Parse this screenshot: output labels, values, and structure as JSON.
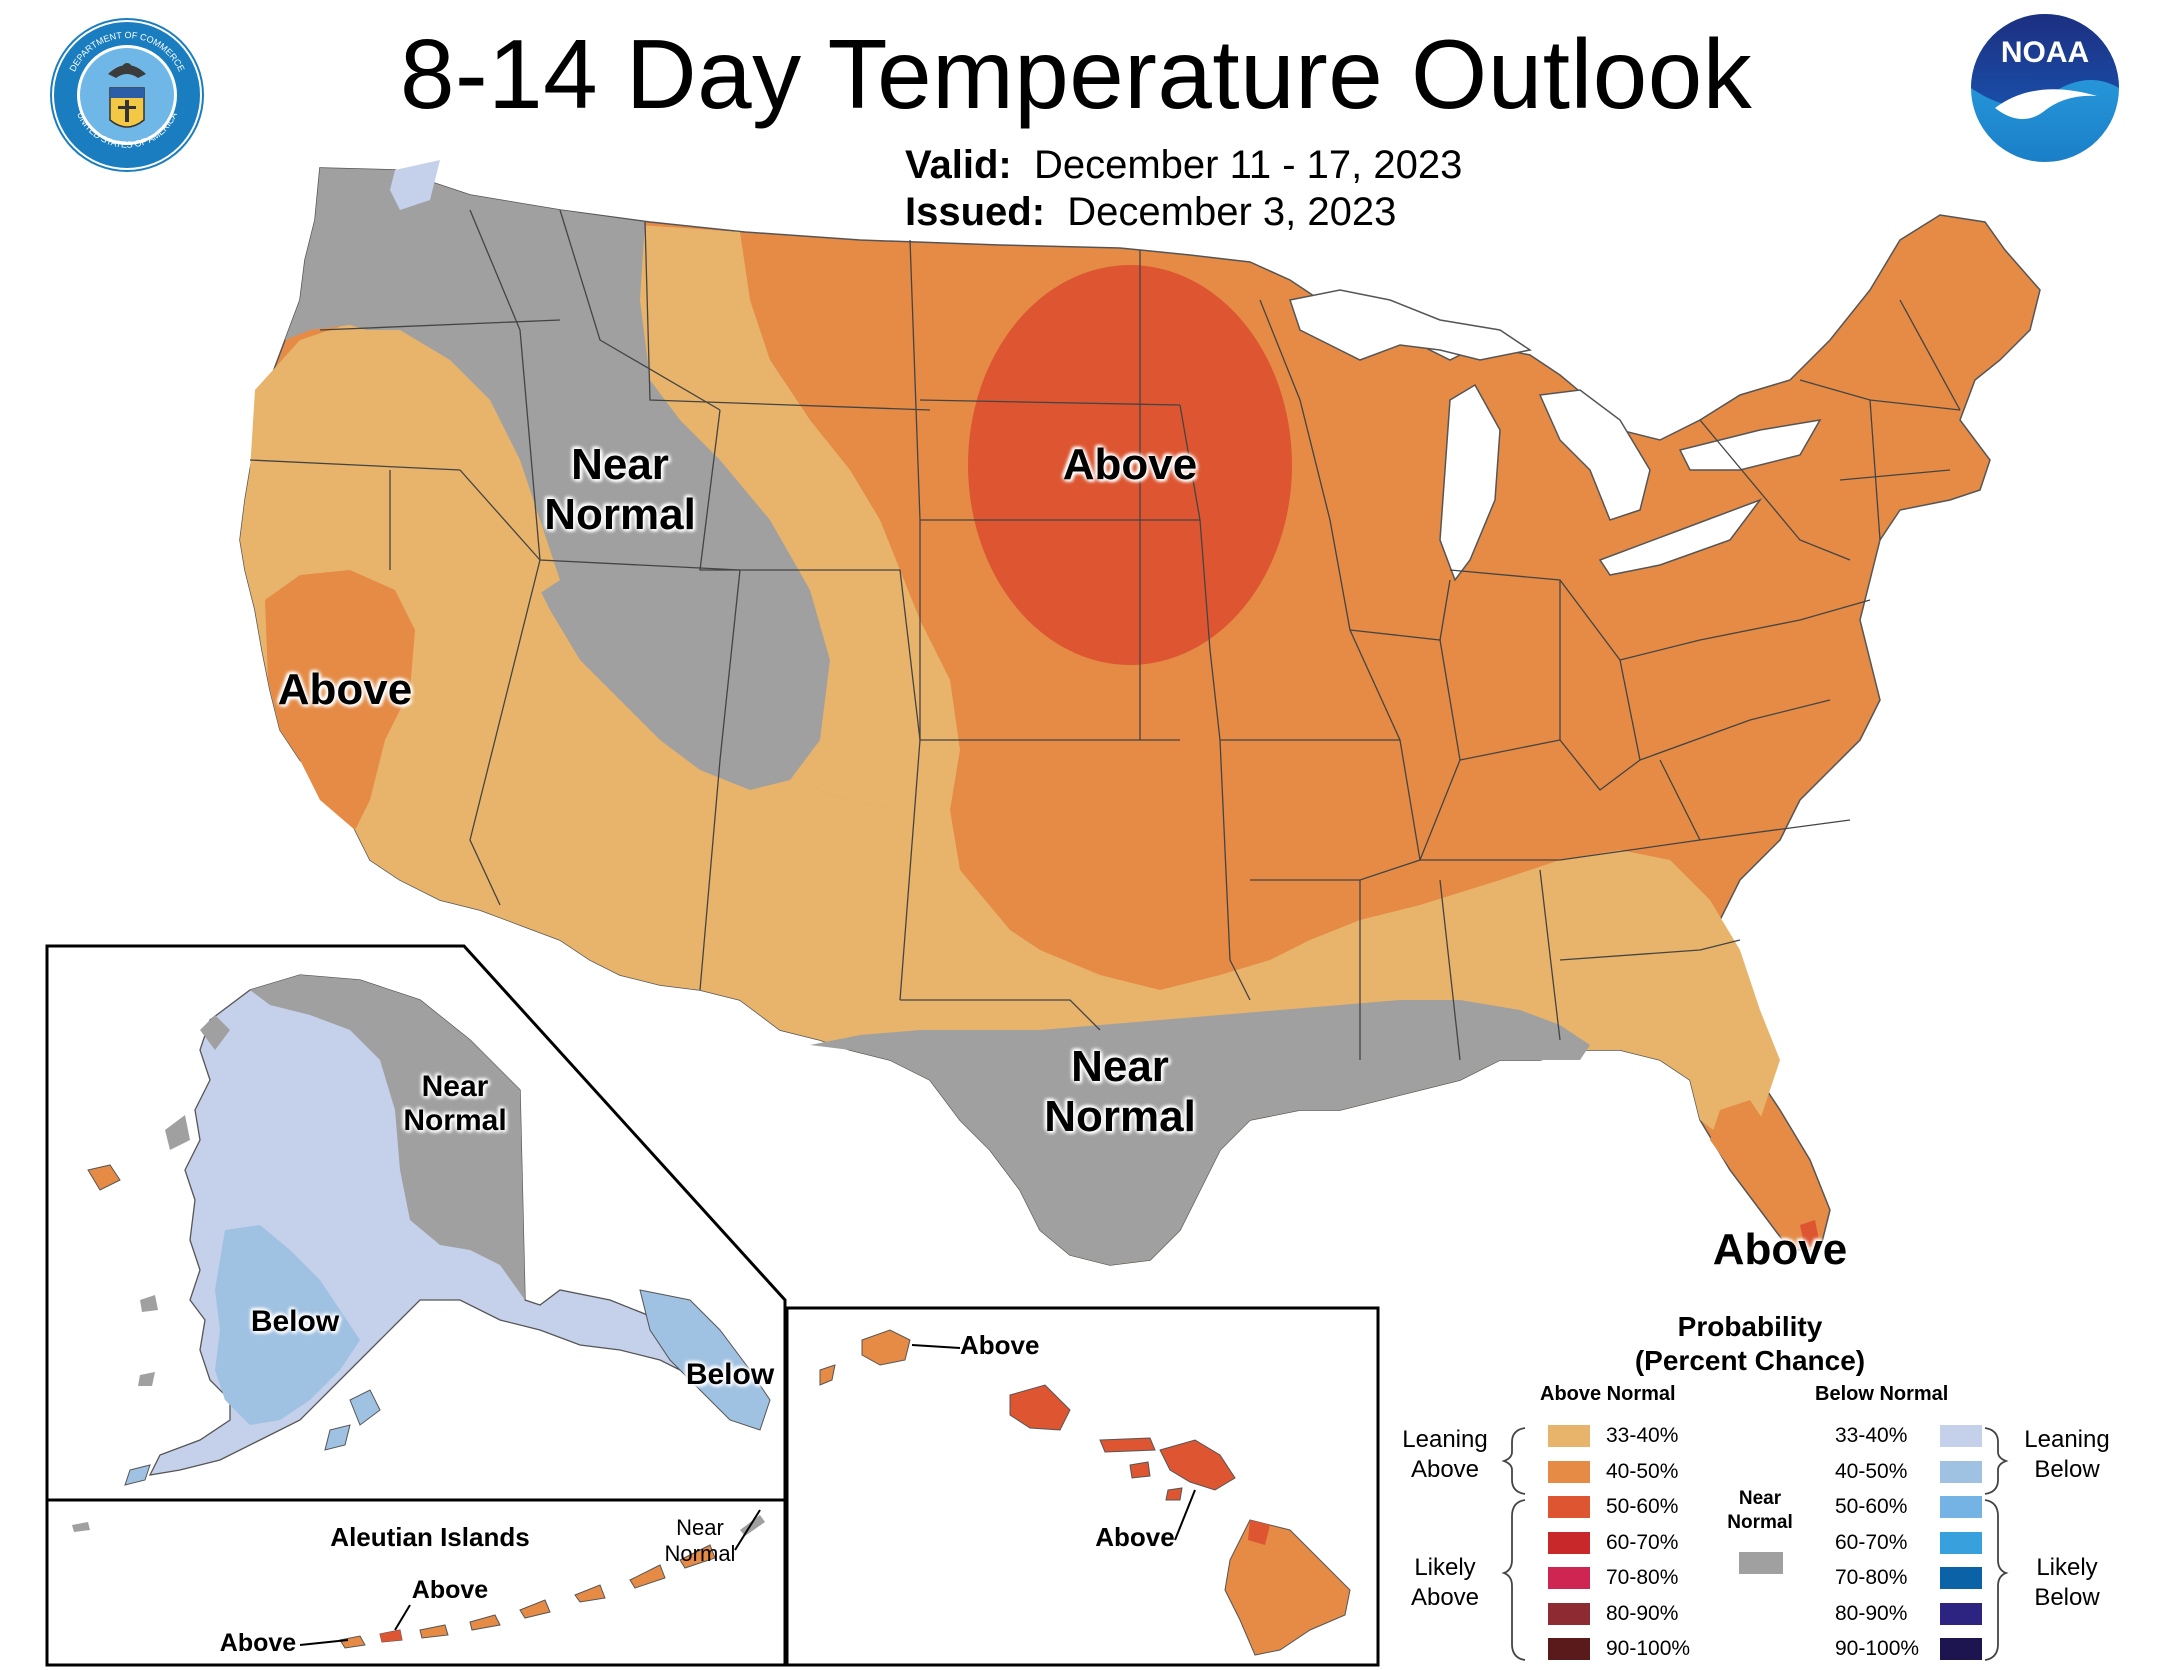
{
  "title": "8-14 Day Temperature Outlook",
  "valid_label": "Valid:",
  "valid_value": "December 11 - 17, 2023",
  "issued_label": "Issued:",
  "issued_value": "December 3, 2023",
  "logos": {
    "left": "department-of-commerce-seal",
    "left_ring_text_top": "DEPARTMENT OF COMMERCE",
    "left_ring_text_bottom": "UNITED STATES OF AMERICA",
    "right": "noaa-logo",
    "right_text": "NOAA"
  },
  "conus_labels": {
    "near_normal_west": [
      "Near",
      "Normal"
    ],
    "above_plains": "Above",
    "above_california": "Above",
    "near_normal_south": [
      "Near",
      "Normal"
    ],
    "above_florida": "Above"
  },
  "alaska_labels": {
    "near_normal": [
      "Near",
      "Normal"
    ],
    "below_southwest": "Below",
    "below_southeast": "Below"
  },
  "aleutian": {
    "title": "Aleutian Islands",
    "near_normal": [
      "Near",
      "Normal"
    ],
    "above_1": "Above",
    "above_2": "Above"
  },
  "hawaii_labels": {
    "above_kauai": "Above",
    "above_maui": "Above"
  },
  "legend": {
    "title_line1": "Probability",
    "title_line2": "(Percent Chance)",
    "above_header": "Above Normal",
    "below_header": "Below Normal",
    "near_normal": [
      "Near",
      "Normal"
    ],
    "leaning_above": [
      "Leaning",
      "Above"
    ],
    "likely_above": [
      "Likely",
      "Above"
    ],
    "leaning_below": [
      "Leaning",
      "Below"
    ],
    "likely_below": [
      "Likely",
      "Below"
    ],
    "near_color": "#a0a0a0",
    "above": [
      {
        "range": "33-40%",
        "color": "#e8b46b"
      },
      {
        "range": "40-50%",
        "color": "#e58b45"
      },
      {
        "range": "50-60%",
        "color": "#dd5631"
      },
      {
        "range": "60-70%",
        "color": "#c8282a"
      },
      {
        "range": "70-80%",
        "color": "#cf2553"
      },
      {
        "range": "80-90%",
        "color": "#8e2a32"
      },
      {
        "range": "90-100%",
        "color": "#5a1a1c"
      }
    ],
    "below": [
      {
        "range": "33-40%",
        "color": "#c5d0ea"
      },
      {
        "range": "40-50%",
        "color": "#9fc1e2"
      },
      {
        "range": "50-60%",
        "color": "#74b3e3"
      },
      {
        "range": "60-70%",
        "color": "#38a1dd"
      },
      {
        "range": "70-80%",
        "color": "#0c62a6"
      },
      {
        "range": "80-90%",
        "color": "#2d2380"
      },
      {
        "range": "90-100%",
        "color": "#1c1550"
      }
    ]
  }
}
